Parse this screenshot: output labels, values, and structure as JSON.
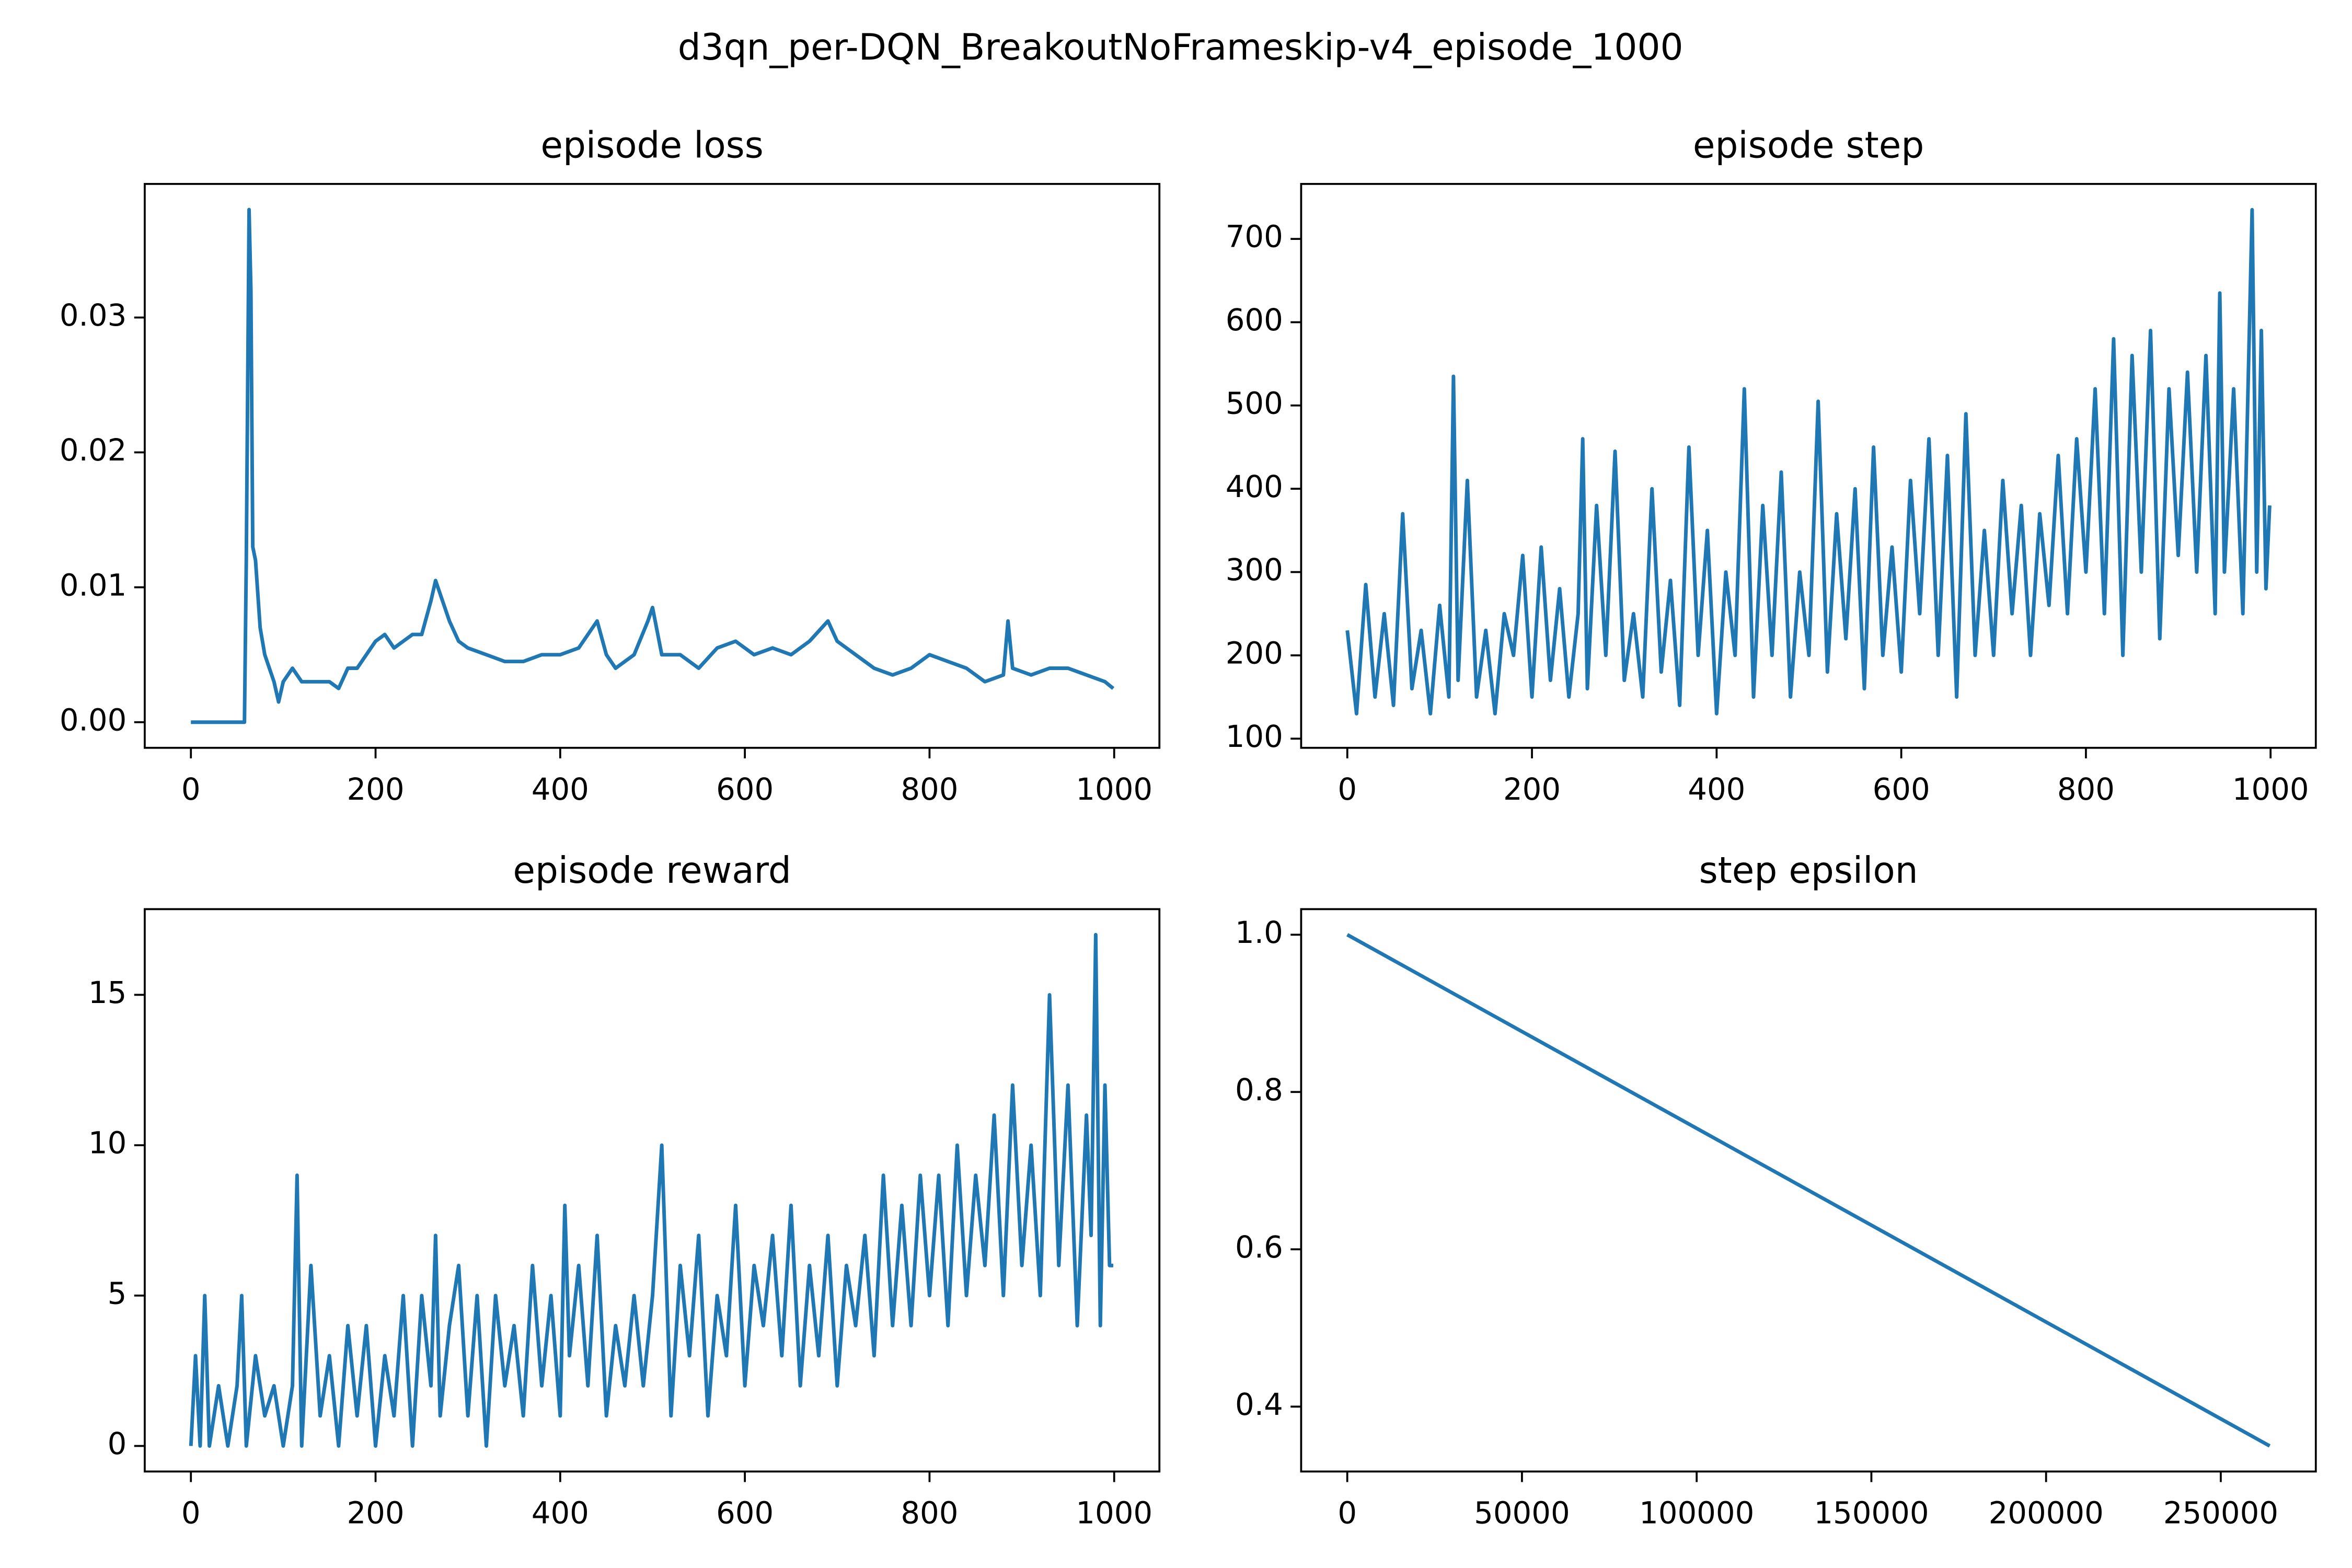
{
  "title": "d3qn_per-DQN_BreakoutNoFrameskip-v4_episode_1000",
  "chart_data": [
    {
      "type": "line",
      "title": "episode loss",
      "color": "#1f77b4",
      "xlim": [
        -50,
        1049
      ],
      "ylim": [
        -0.0019,
        0.0399
      ],
      "xticks": [
        0,
        200,
        400,
        600,
        800,
        1000
      ],
      "yticks": [
        {
          "value": 0,
          "label": "0.00"
        },
        0.01,
        0.02,
        0.03
      ],
      "x": [
        0,
        58,
        60,
        63,
        65,
        67,
        70,
        75,
        80,
        90,
        95,
        100,
        110,
        120,
        130,
        140,
        150,
        160,
        170,
        180,
        190,
        200,
        210,
        220,
        230,
        240,
        250,
        260,
        265,
        270,
        280,
        290,
        300,
        320,
        340,
        360,
        380,
        400,
        420,
        440,
        450,
        460,
        480,
        495,
        500,
        510,
        530,
        550,
        570,
        590,
        610,
        630,
        650,
        670,
        690,
        700,
        720,
        740,
        760,
        780,
        800,
        820,
        840,
        860,
        880,
        885,
        890,
        910,
        930,
        950,
        970,
        990,
        999
      ],
      "values": [
        0,
        0,
        0.012,
        0.038,
        0.032,
        0.013,
        0.012,
        0.007,
        0.005,
        0.003,
        0.0015,
        0.003,
        0.004,
        0.003,
        0.003,
        0.003,
        0.003,
        0.0025,
        0.004,
        0.004,
        0.005,
        0.006,
        0.0065,
        0.0055,
        0.006,
        0.0065,
        0.0065,
        0.009,
        0.0105,
        0.0095,
        0.0075,
        0.006,
        0.0055,
        0.005,
        0.0045,
        0.0045,
        0.005,
        0.005,
        0.0055,
        0.0075,
        0.005,
        0.004,
        0.005,
        0.0075,
        0.0085,
        0.005,
        0.005,
        0.004,
        0.0055,
        0.006,
        0.005,
        0.0055,
        0.005,
        0.006,
        0.0075,
        0.006,
        0.005,
        0.004,
        0.0035,
        0.004,
        0.005,
        0.0045,
        0.004,
        0.003,
        0.0035,
        0.0075,
        0.004,
        0.0035,
        0.004,
        0.004,
        0.0035,
        0.003,
        0.0025
      ]
    },
    {
      "type": "line",
      "title": "episode step",
      "color": "#1f77b4",
      "xlim": [
        -50,
        1049
      ],
      "ylim": [
        89,
        766
      ],
      "xticks": [
        0,
        200,
        400,
        600,
        800,
        1000
      ],
      "yticks": [
        100,
        200,
        300,
        400,
        500,
        600,
        700
      ],
      "x": [
        0,
        10,
        20,
        30,
        40,
        50,
        60,
        70,
        80,
        90,
        100,
        110,
        115,
        120,
        130,
        140,
        150,
        160,
        170,
        180,
        190,
        200,
        210,
        220,
        230,
        240,
        250,
        255,
        260,
        270,
        280,
        290,
        300,
        310,
        320,
        330,
        340,
        350,
        360,
        370,
        380,
        390,
        400,
        410,
        420,
        430,
        440,
        450,
        460,
        470,
        480,
        490,
        500,
        510,
        520,
        530,
        540,
        550,
        560,
        570,
        580,
        590,
        600,
        610,
        620,
        630,
        640,
        650,
        660,
        670,
        680,
        690,
        700,
        710,
        720,
        730,
        740,
        750,
        760,
        770,
        780,
        790,
        800,
        810,
        820,
        830,
        840,
        850,
        860,
        870,
        880,
        890,
        900,
        910,
        920,
        930,
        940,
        945,
        950,
        960,
        970,
        980,
        985,
        990,
        995,
        999
      ],
      "values": [
        230,
        130,
        285,
        150,
        250,
        140,
        370,
        160,
        230,
        130,
        260,
        150,
        535,
        170,
        410,
        150,
        230,
        130,
        250,
        200,
        320,
        150,
        330,
        170,
        280,
        150,
        250,
        460,
        160,
        380,
        200,
        445,
        170,
        250,
        150,
        400,
        180,
        290,
        140,
        450,
        200,
        350,
        130,
        300,
        200,
        520,
        150,
        380,
        200,
        420,
        150,
        300,
        200,
        505,
        180,
        370,
        220,
        400,
        160,
        450,
        200,
        330,
        180,
        410,
        250,
        460,
        200,
        440,
        150,
        490,
        200,
        350,
        200,
        410,
        250,
        380,
        200,
        370,
        260,
        440,
        250,
        460,
        300,
        520,
        250,
        580,
        200,
        560,
        300,
        590,
        220,
        520,
        320,
        540,
        300,
        560,
        250,
        635,
        300,
        520,
        250,
        735,
        300,
        590,
        280,
        380
      ]
    },
    {
      "type": "line",
      "title": "episode reward",
      "color": "#1f77b4",
      "xlim": [
        -50,
        1049
      ],
      "ylim": [
        -0.85,
        17.85
      ],
      "xticks": [
        0,
        200,
        400,
        600,
        800,
        1000
      ],
      "yticks": [
        0,
        5,
        10,
        15
      ],
      "x": [
        0,
        5,
        10,
        15,
        20,
        30,
        40,
        50,
        55,
        60,
        70,
        80,
        90,
        100,
        110,
        115,
        120,
        130,
        140,
        150,
        160,
        170,
        180,
        190,
        200,
        210,
        220,
        230,
        240,
        250,
        260,
        265,
        270,
        280,
        290,
        300,
        310,
        320,
        330,
        340,
        350,
        360,
        370,
        380,
        390,
        400,
        405,
        410,
        420,
        430,
        440,
        450,
        460,
        470,
        480,
        490,
        500,
        510,
        520,
        530,
        540,
        550,
        560,
        570,
        580,
        590,
        600,
        610,
        620,
        630,
        640,
        650,
        660,
        670,
        680,
        690,
        700,
        710,
        720,
        730,
        740,
        750,
        760,
        770,
        780,
        790,
        800,
        810,
        820,
        830,
        840,
        850,
        860,
        870,
        880,
        890,
        900,
        910,
        920,
        930,
        940,
        950,
        960,
        970,
        975,
        980,
        985,
        990,
        995,
        999
      ],
      "values": [
        0,
        3,
        0,
        5,
        0,
        2,
        0,
        2,
        5,
        0,
        3,
        1,
        2,
        0,
        2,
        9,
        0,
        6,
        1,
        3,
        0,
        4,
        1,
        4,
        0,
        3,
        1,
        5,
        0,
        5,
        2,
        7,
        1,
        4,
        6,
        1,
        5,
        0,
        5,
        2,
        4,
        1,
        6,
        2,
        5,
        1,
        8,
        3,
        6,
        2,
        7,
        1,
        4,
        2,
        5,
        2,
        5,
        10,
        1,
        6,
        3,
        7,
        1,
        5,
        3,
        8,
        2,
        6,
        4,
        7,
        3,
        8,
        2,
        6,
        3,
        7,
        2,
        6,
        4,
        7,
        3,
        9,
        4,
        8,
        4,
        9,
        5,
        9,
        4,
        10,
        5,
        9,
        6,
        11,
        5,
        12,
        6,
        10,
        5,
        15,
        6,
        12,
        4,
        11,
        7,
        17,
        4,
        12,
        6,
        6
      ]
    },
    {
      "type": "line",
      "title": "step epsilon",
      "color": "#1f77b4",
      "xlim": [
        -13200,
        277200
      ],
      "ylim": [
        0.3175,
        1.0325
      ],
      "xticks": [
        0,
        50000,
        100000,
        150000,
        200000,
        250000
      ],
      "yticks": [
        0.4,
        0.6,
        0.8,
        {
          "value": 1,
          "label": "1.0"
        }
      ],
      "x": [
        0,
        264000
      ],
      "values": [
        1,
        0.35
      ]
    }
  ]
}
